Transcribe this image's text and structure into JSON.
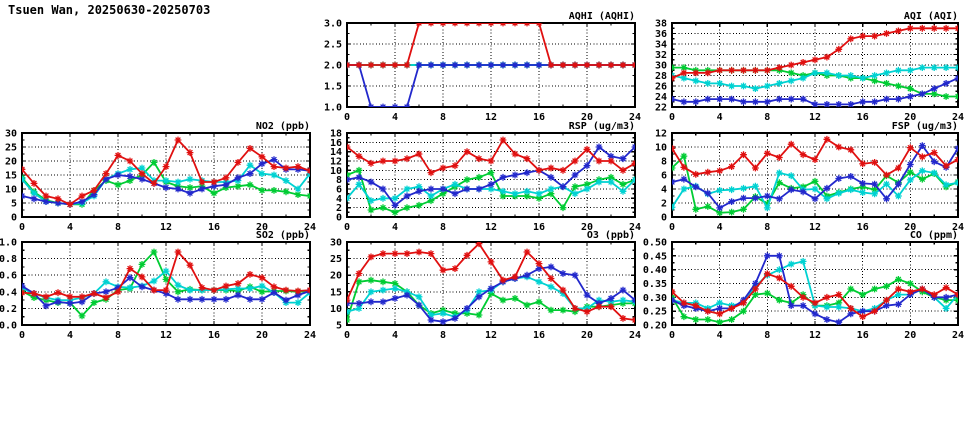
{
  "title": "Tsuen Wan, 20250630-20250703",
  "colors": {
    "red": "#e01010",
    "green": "#00cc33",
    "blue": "#2228cc",
    "cyan": "#00d2d2"
  },
  "chart_data": [
    {
      "key": "aqhi",
      "type": "line",
      "title": "AQHI (AQHI)",
      "xlim": [
        0,
        24
      ],
      "xticks": [
        0,
        4,
        8,
        12,
        16,
        20,
        24
      ],
      "x_step": 1,
      "ylim": [
        1.0,
        3.0
      ],
      "ytick_step": 0.5,
      "y_decimals": 1,
      "grid": true,
      "legend": "none",
      "series": [
        {
          "name": "green",
          "values": [
            2,
            2,
            2,
            2,
            2,
            2,
            2,
            2,
            2,
            2,
            2,
            2,
            2,
            2,
            2,
            2,
            2,
            2,
            2,
            2,
            2,
            2,
            2,
            2,
            2
          ]
        },
        {
          "name": "cyan",
          "values": [
            2,
            2,
            2,
            2,
            2,
            2,
            2,
            2,
            2,
            2,
            2,
            2,
            2,
            2,
            2,
            2,
            2,
            2,
            2,
            2,
            2,
            2,
            2,
            2,
            2
          ]
        },
        {
          "name": "blue",
          "values": [
            2,
            2,
            1,
            1,
            1,
            1,
            2,
            2,
            2,
            2,
            2,
            2,
            2,
            2,
            2,
            2,
            2,
            2,
            2,
            2,
            2,
            2,
            2,
            2,
            2
          ]
        },
        {
          "name": "red",
          "values": [
            2,
            2,
            2,
            2,
            2,
            2,
            3,
            3,
            3,
            3,
            3,
            3,
            3,
            3,
            3,
            3,
            3,
            2,
            2,
            2,
            2,
            2,
            2,
            2,
            2
          ]
        }
      ]
    },
    {
      "key": "aqi",
      "type": "line",
      "title": "AQI (AQI)",
      "xlim": [
        0,
        24
      ],
      "xticks": [
        0,
        4,
        8,
        12,
        16,
        20,
        24
      ],
      "x_step": 1,
      "ylim": [
        22,
        38
      ],
      "ytick_step": 2,
      "y_decimals": 0,
      "grid": true,
      "legend": "none",
      "series": [
        {
          "name": "green",
          "values": [
            29.5,
            29.5,
            29,
            29,
            29,
            29,
            29,
            29,
            29,
            29,
            28.5,
            28,
            28.5,
            28,
            28,
            27.5,
            27.5,
            27,
            26.5,
            26,
            25.5,
            24.5,
            24.5,
            24,
            24
          ]
        },
        {
          "name": "cyan",
          "values": [
            28,
            27.5,
            27,
            26.5,
            26.5,
            26,
            26,
            25.5,
            26,
            26.5,
            27,
            27.5,
            28.5,
            28.5,
            28,
            28,
            27.5,
            28,
            28.5,
            29,
            29,
            29.5,
            29.5,
            29.5,
            29.5
          ]
        },
        {
          "name": "blue",
          "values": [
            23.5,
            23,
            23,
            23.5,
            23.5,
            23.5,
            23,
            23,
            23,
            23.5,
            23.5,
            23.5,
            22.5,
            22.5,
            22.5,
            22.5,
            23,
            23,
            23.5,
            23.5,
            24,
            24.5,
            25.5,
            26.5,
            27.5
          ]
        },
        {
          "name": "red",
          "values": [
            27.5,
            28.5,
            28.5,
            28.5,
            29,
            29,
            29,
            29,
            29,
            29.5,
            30,
            30.5,
            31,
            31.5,
            33,
            35,
            35.5,
            35.5,
            36,
            36.5,
            37,
            37,
            37,
            37,
            37
          ]
        }
      ]
    },
    {
      "key": "no2",
      "type": "line",
      "title": "NO2 (ppb)",
      "xlim": [
        0,
        24
      ],
      "xticks": [
        0,
        4,
        8,
        12,
        16,
        20,
        24
      ],
      "x_step": 1,
      "ylim": [
        0,
        30
      ],
      "ytick_step": 5,
      "y_decimals": 0,
      "grid": true,
      "legend": "none",
      "series": [
        {
          "name": "green",
          "values": [
            14,
            9,
            6,
            5,
            4.5,
            4.5,
            9.5,
            13,
            11.5,
            13,
            15,
            19.5,
            12.5,
            11,
            10.5,
            11,
            8.5,
            10.5,
            11,
            11.5,
            9.5,
            9.5,
            9,
            8,
            7.5
          ]
        },
        {
          "name": "cyan",
          "values": [
            13.5,
            8.5,
            5.5,
            5,
            4.5,
            5,
            7.5,
            13.5,
            15.5,
            17,
            17.5,
            13,
            13,
            12.5,
            13.5,
            13,
            12.5,
            12.5,
            13,
            18.5,
            15.5,
            15,
            13,
            10,
            15.5
          ]
        },
        {
          "name": "blue",
          "values": [
            7.5,
            6.5,
            5.5,
            5,
            4.5,
            5.5,
            8,
            13.5,
            15,
            14.5,
            13.5,
            12,
            10.5,
            10,
            8.5,
            10,
            11,
            11.5,
            14,
            15.5,
            19,
            20.5,
            17,
            17,
            16.5
          ]
        },
        {
          "name": "red",
          "values": [
            17,
            12,
            7.5,
            6.5,
            4.5,
            7.5,
            9.5,
            15.5,
            22,
            20,
            15.5,
            12,
            18,
            27.5,
            23,
            12.5,
            12.5,
            14,
            19.5,
            24.5,
            21.5,
            18,
            17.5,
            18,
            16.5
          ]
        }
      ]
    },
    {
      "key": "rsp",
      "type": "line",
      "title": "RSP (ug/m3)",
      "xlim": [
        0,
        24
      ],
      "xticks": [
        0,
        4,
        8,
        12,
        16,
        20,
        24
      ],
      "x_step": 1,
      "ylim": [
        0,
        18
      ],
      "ytick_step": 2,
      "y_decimals": 0,
      "grid": true,
      "legend": "none",
      "series": [
        {
          "name": "green",
          "values": [
            9,
            10,
            1.5,
            2,
            1,
            2,
            2.5,
            3.5,
            5,
            6.5,
            8,
            8.5,
            9.5,
            4.5,
            4.5,
            4.5,
            4,
            5,
            2,
            6.5,
            7,
            8,
            8.5,
            7,
            8
          ]
        },
        {
          "name": "cyan",
          "values": [
            4,
            7,
            3.5,
            4,
            4,
            6,
            6.5,
            4.5,
            6,
            7,
            6,
            6,
            6,
            5.5,
            5,
            5.5,
            5,
            6,
            6.5,
            5,
            6,
            7.5,
            7.5,
            5.5,
            8
          ]
        },
        {
          "name": "blue",
          "values": [
            8,
            8.5,
            7.5,
            6,
            2.5,
            4.5,
            5.5,
            6,
            6,
            5,
            6,
            6,
            7,
            8.5,
            9,
            9.5,
            10,
            8.5,
            6.5,
            9,
            11,
            15,
            13,
            12.5,
            15
          ]
        },
        {
          "name": "red",
          "values": [
            15,
            13,
            11.5,
            12,
            12,
            12.5,
            13.5,
            9.5,
            10.5,
            11,
            14,
            12.5,
            12,
            16.5,
            13.5,
            12.5,
            10,
            10.5,
            10,
            12,
            14.5,
            12,
            12,
            10,
            11.5
          ]
        }
      ]
    },
    {
      "key": "fsp",
      "type": "line",
      "title": "FSP (ug/m3)",
      "xlim": [
        0,
        24
      ],
      "xticks": [
        0,
        4,
        8,
        12,
        16,
        20,
        24
      ],
      "x_step": 1,
      "ylim": [
        0,
        12
      ],
      "ytick_step": 2,
      "y_decimals": 0,
      "grid": true,
      "legend": "none",
      "series": [
        {
          "name": "green",
          "values": [
            7,
            8.7,
            1.1,
            1.5,
            0.6,
            0.7,
            1.1,
            2.9,
            1.9,
            4.9,
            4.1,
            4.3,
            5.1,
            3,
            3.5,
            4,
            4.3,
            3.9,
            5.9,
            4.9,
            6.4,
            5.4,
            6.2,
            4.3,
            5
          ]
        },
        {
          "name": "cyan",
          "values": [
            1.4,
            4,
            4.4,
            3.3,
            3.8,
            3.9,
            4.1,
            4.4,
            1.3,
            6.3,
            5.9,
            3.9,
            4,
            2.6,
            3.4,
            3.9,
            3.5,
            3.3,
            4.7,
            3,
            5.3,
            6.6,
            6.3,
            4.6,
            4.9
          ]
        },
        {
          "name": "blue",
          "values": [
            5,
            5.4,
            4.3,
            3.4,
            1.3,
            2.2,
            2.7,
            2.7,
            3,
            2.6,
            3.9,
            3.6,
            2.6,
            4.1,
            5.5,
            5.8,
            4.8,
            4.7,
            2.6,
            4.7,
            7.5,
            10.2,
            7.9,
            7.1,
            9.8
          ]
        },
        {
          "name": "red",
          "values": [
            9.8,
            7.1,
            6.1,
            6.4,
            6.6,
            7.2,
            8.9,
            7,
            9.1,
            8.5,
            10.4,
            8.9,
            8.2,
            11.1,
            10,
            9.6,
            7.6,
            7.8,
            6,
            7,
            9.9,
            8.6,
            9.2,
            7.3,
            8.2
          ]
        }
      ]
    },
    {
      "key": "so2",
      "type": "line",
      "title": "SO2 (ppb)",
      "xlim": [
        0,
        24
      ],
      "xticks": [
        0,
        4,
        8,
        12,
        16,
        20,
        24
      ],
      "x_step": 1,
      "ylim": [
        0.0,
        1.0
      ],
      "ytick_step": 0.2,
      "y_decimals": 1,
      "grid": true,
      "legend": "none",
      "series": [
        {
          "name": "green",
          "values": [
            0.41,
            0.33,
            0.3,
            0.27,
            0.27,
            0.11,
            0.27,
            0.31,
            0.42,
            0.44,
            0.73,
            0.88,
            0.55,
            0.4,
            0.43,
            0.42,
            0.42,
            0.42,
            0.41,
            0.46,
            0.4,
            0.41,
            0.41,
            0.4,
            0.41
          ]
        },
        {
          "name": "cyan",
          "values": [
            0.44,
            0.38,
            0.33,
            0.3,
            0.3,
            0.33,
            0.38,
            0.52,
            0.46,
            0.45,
            0.47,
            0.53,
            0.65,
            0.48,
            0.42,
            0.42,
            0.42,
            0.43,
            0.44,
            0.44,
            0.47,
            0.39,
            0.27,
            0.27,
            0.39
          ]
        },
        {
          "name": "blue",
          "values": [
            0.47,
            0.38,
            0.23,
            0.28,
            0.26,
            0.28,
            0.38,
            0.4,
            0.45,
            0.57,
            0.46,
            0.42,
            0.38,
            0.31,
            0.31,
            0.31,
            0.31,
            0.31,
            0.36,
            0.31,
            0.31,
            0.39,
            0.3,
            0.36,
            0.41
          ]
        },
        {
          "name": "red",
          "values": [
            0.39,
            0.38,
            0.34,
            0.39,
            0.34,
            0.34,
            0.38,
            0.33,
            0.4,
            0.68,
            0.58,
            0.42,
            0.42,
            0.88,
            0.72,
            0.45,
            0.42,
            0.47,
            0.5,
            0.61,
            0.57,
            0.46,
            0.42,
            0.41,
            0.42
          ]
        }
      ]
    },
    {
      "key": "o3",
      "type": "line",
      "title": "O3 (ppb)",
      "xlim": [
        0,
        24
      ],
      "xticks": [
        0,
        4,
        8,
        12,
        16,
        20,
        24
      ],
      "x_step": 1,
      "ylim": [
        5,
        30
      ],
      "ytick_step": 5,
      "y_decimals": 0,
      "grid": true,
      "legend": "none",
      "series": [
        {
          "name": "green",
          "values": [
            6.5,
            18,
            18.5,
            18,
            17.5,
            15,
            11,
            8.5,
            9.5,
            8.5,
            8.5,
            8,
            14.5,
            12.5,
            13,
            11,
            12,
            9.5,
            9.5,
            9,
            10.5,
            10.5,
            11,
            11.5,
            11.5
          ]
        },
        {
          "name": "cyan",
          "values": [
            9,
            10,
            15,
            15.5,
            16,
            15,
            13.5,
            8,
            8.5,
            7.5,
            9.5,
            15,
            15.5,
            18,
            19,
            19.5,
            18,
            16.5,
            14.5,
            10,
            10,
            12.5,
            12,
            12.5,
            12
          ]
        },
        {
          "name": "blue",
          "values": [
            11.5,
            11.5,
            12,
            12,
            13,
            14,
            11,
            6.5,
            6,
            7,
            10,
            13.5,
            16,
            18,
            19,
            20,
            22,
            22.5,
            20.5,
            20,
            14,
            11.5,
            13,
            15.5,
            12.5
          ]
        },
        {
          "name": "red",
          "values": [
            12.5,
            20.5,
            25.5,
            26.5,
            26.5,
            26.5,
            27,
            26.5,
            21.5,
            22,
            26,
            29.5,
            24,
            18.5,
            19.5,
            27,
            23.5,
            19,
            15.5,
            10,
            9,
            10.5,
            10.5,
            7,
            6.5
          ]
        }
      ]
    },
    {
      "key": "co",
      "type": "line",
      "title": "CO (ppm)",
      "xlim": [
        0,
        24
      ],
      "xticks": [
        0,
        4,
        8,
        12,
        16,
        20,
        24
      ],
      "x_step": 1,
      "ylim": [
        0.2,
        0.5
      ],
      "ytick_step": 0.05,
      "y_decimals": 2,
      "grid": true,
      "legend": "none",
      "series": [
        {
          "name": "green",
          "values": [
            0.3,
            0.23,
            0.22,
            0.22,
            0.21,
            0.22,
            0.25,
            0.31,
            0.315,
            0.29,
            0.28,
            0.31,
            0.27,
            0.27,
            0.28,
            0.33,
            0.31,
            0.33,
            0.34,
            0.365,
            0.35,
            0.32,
            0.3,
            0.29,
            0.29
          ]
        },
        {
          "name": "cyan",
          "values": [
            0.29,
            0.28,
            0.28,
            0.26,
            0.28,
            0.27,
            0.28,
            0.34,
            0.38,
            0.4,
            0.42,
            0.43,
            0.27,
            0.265,
            0.265,
            0.26,
            0.25,
            0.26,
            0.29,
            0.31,
            0.31,
            0.33,
            0.3,
            0.26,
            0.31
          ]
        },
        {
          "name": "blue",
          "values": [
            0.29,
            0.27,
            0.26,
            0.25,
            0.26,
            0.26,
            0.29,
            0.35,
            0.45,
            0.45,
            0.27,
            0.27,
            0.24,
            0.22,
            0.21,
            0.24,
            0.25,
            0.25,
            0.27,
            0.275,
            0.31,
            0.33,
            0.3,
            0.3,
            0.31
          ]
        },
        {
          "name": "red",
          "values": [
            0.32,
            0.28,
            0.27,
            0.25,
            0.24,
            0.26,
            0.28,
            0.33,
            0.385,
            0.37,
            0.34,
            0.3,
            0.28,
            0.3,
            0.31,
            0.26,
            0.23,
            0.25,
            0.29,
            0.33,
            0.32,
            0.33,
            0.31,
            0.335,
            0.31
          ]
        }
      ]
    }
  ]
}
